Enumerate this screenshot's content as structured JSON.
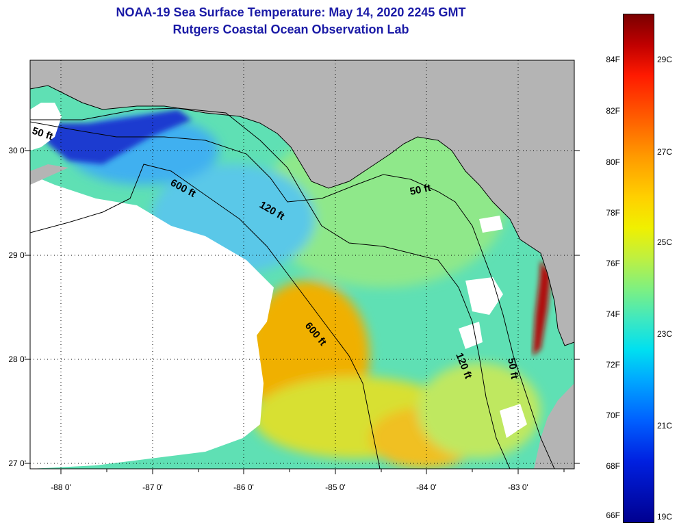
{
  "title": {
    "line1": "NOAA-19 Sea Surface Temperature:  May 14, 2020 2245 GMT",
    "line2": "Rutgers Coastal Ocean Observation Lab"
  },
  "axes": {
    "lat_labels": [
      "30 0'",
      "29 0'",
      "28 0'",
      "27 0'"
    ],
    "lon_labels": [
      "-88 0'",
      "-87 0'",
      "-86 0'",
      "-85 0'",
      "-84 0'",
      "-83 0'"
    ]
  },
  "contour_labels": {
    "c50_west": "50 ft",
    "c600_north": "600 ft",
    "c120_north": "120 ft",
    "c50_east": "50 ft",
    "c600_south": "600 ft",
    "c120_south": "120 ft",
    "c50_south": "50 ft"
  },
  "colorbar": {
    "fahrenheit": [
      "84F",
      "82F",
      "80F",
      "78F",
      "76F",
      "74F",
      "72F",
      "70F",
      "68F",
      "66F"
    ],
    "celsius": [
      "29C",
      "27C",
      "25C",
      "23C",
      "21C",
      "19C"
    ]
  },
  "colors": {
    "land": "#b4b4b4",
    "no_data": "#ffffff",
    "title": "#1a1aa6"
  }
}
